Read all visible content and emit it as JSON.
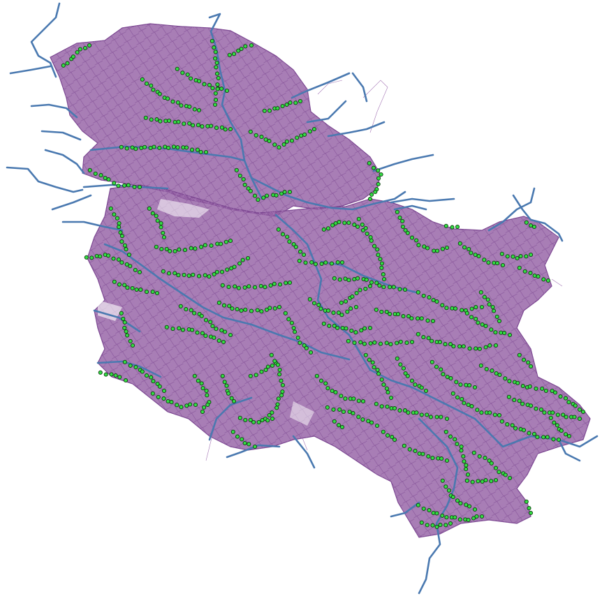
{
  "map": {
    "background": "#ffffff",
    "layers": [
      {
        "name": "road-network",
        "color": "#8f5aa0"
      },
      {
        "name": "rivers",
        "color": "#4a79b0"
      },
      {
        "name": "sites",
        "color": "#33dd44"
      }
    ]
  }
}
